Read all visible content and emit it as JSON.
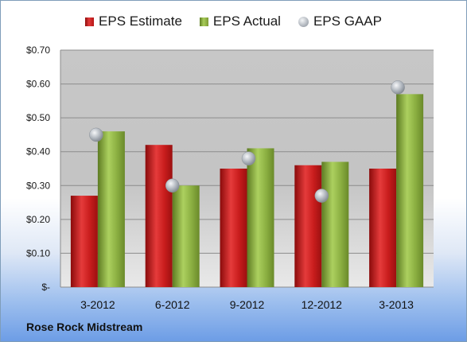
{
  "chart_data": {
    "type": "bar",
    "categories": [
      "3-2012",
      "6-2012",
      "9-2012",
      "12-2012",
      "3-2013"
    ],
    "series": [
      {
        "name": "EPS Estimate",
        "kind": "bar",
        "values": [
          0.27,
          0.42,
          0.35,
          0.36,
          0.35
        ],
        "color": "#c81e1e"
      },
      {
        "name": "EPS Actual",
        "kind": "bar",
        "values": [
          0.46,
          0.3,
          0.41,
          0.37,
          0.57
        ],
        "color": "#8db040"
      },
      {
        "name": "EPS GAAP",
        "kind": "scatter",
        "values": [
          0.45,
          0.3,
          0.38,
          0.27,
          0.59
        ],
        "color": "#a9afb7"
      }
    ],
    "ylim": [
      0,
      0.7
    ],
    "yticks": [
      0,
      0.1,
      0.2,
      0.3,
      0.4,
      0.5,
      0.6,
      0.7
    ],
    "ytick_labels": [
      "$-",
      "$0.10",
      "$0.20",
      "$0.30",
      "$0.40",
      "$0.50",
      "$0.60",
      "$0.70"
    ],
    "grid": true,
    "legend": "top-center"
  },
  "legend": {
    "estimate_label": "EPS Estimate",
    "actual_label": "EPS Actual",
    "gaap_label": "EPS GAAP"
  },
  "company_name": "Rose Rock Midstream"
}
